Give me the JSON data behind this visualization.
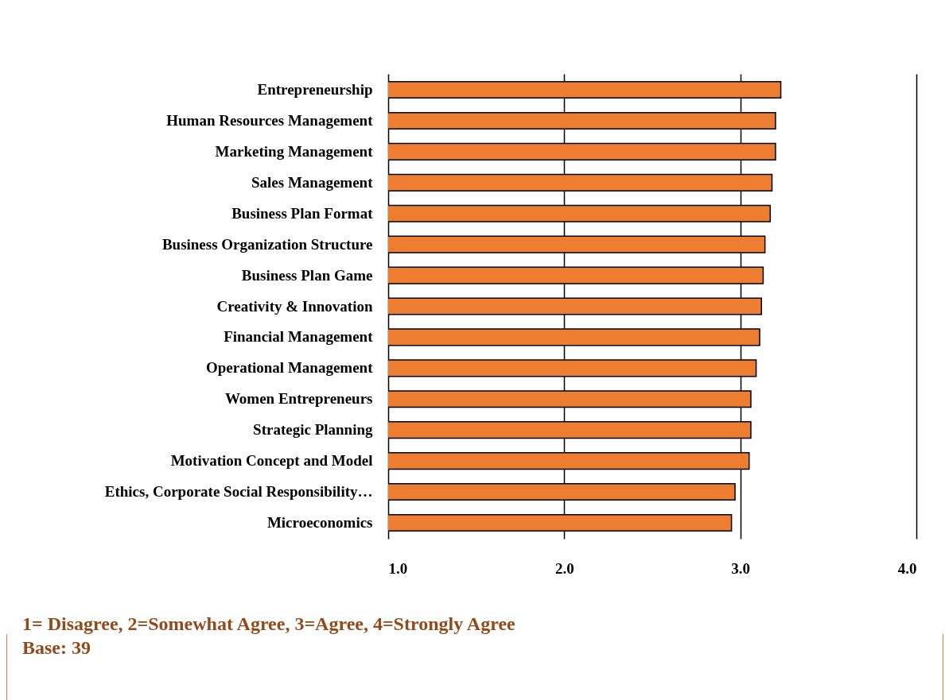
{
  "chart_data": {
    "type": "bar",
    "orientation": "horizontal",
    "categories": [
      "Entrepreneurship",
      "Human Resources Management",
      "Marketing Management",
      "Sales Management",
      "Business Plan Format",
      "Business Organization Structure",
      "Business Plan Game",
      "Creativity & Innovation",
      "Financial Management",
      "Operational Management",
      "Women Entrepreneurs",
      "Strategic Planning",
      "Motivation Concept and Model",
      "Ethics, Corporate Social Responsibility…",
      "Microeconomics"
    ],
    "values": [
      3.23,
      3.2,
      3.2,
      3.18,
      3.17,
      3.14,
      3.13,
      3.12,
      3.11,
      3.09,
      3.06,
      3.06,
      3.05,
      2.97,
      2.95
    ],
    "color": "#ed7d31",
    "xlim": [
      1,
      4
    ],
    "xticks": [
      {
        "value": 1,
        "label": "1.0"
      },
      {
        "value": 2,
        "label": "2.0"
      },
      {
        "value": 3,
        "label": "3.0"
      },
      {
        "value": 4,
        "label": "4.0"
      }
    ],
    "grid": "x",
    "annotations": [
      "1= Disagree, 2=Somewhat Agree, 3=Agree, 4=Strongly Agree",
      "Base: 39"
    ]
  }
}
